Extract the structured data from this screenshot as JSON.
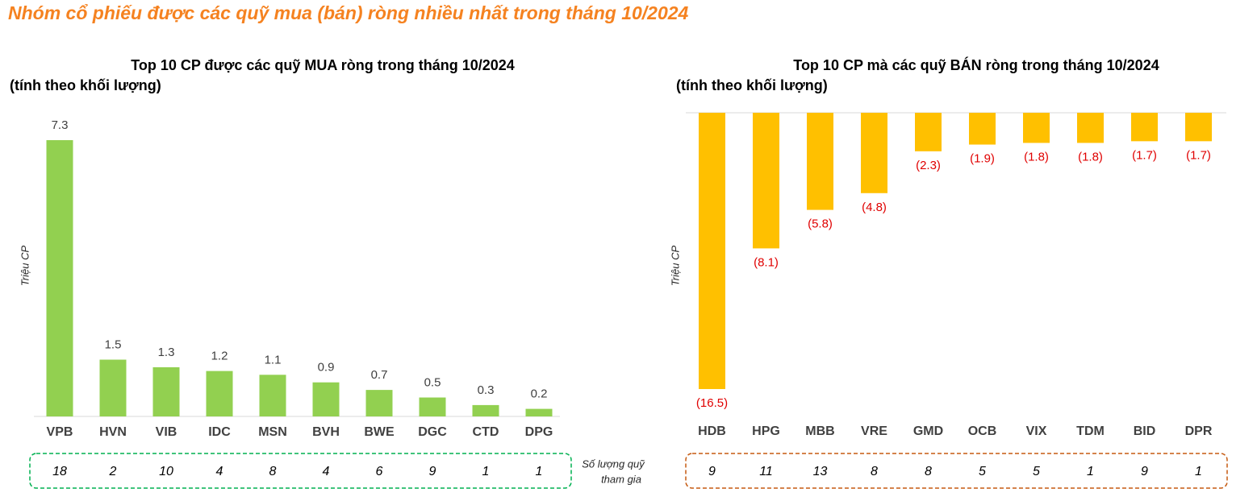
{
  "title": "Nhóm cổ phiếu được các quỹ mua (bán) ròng nhiều nhất trong tháng 10/2024",
  "counts_label": [
    "Số lượng quỹ",
    "tham gia"
  ],
  "chart_data": [
    {
      "type": "bar",
      "title": "Top 10 CP được các quỹ MUA ròng trong tháng 10/2024",
      "subtitle": "(tính theo khối lượng)",
      "y_label": "Triệu CP",
      "color": "#92d050",
      "label_color": "#404040",
      "box_color": "#00b050",
      "categories": [
        "VPB",
        "HVN",
        "VIB",
        "IDC",
        "MSN",
        "BVH",
        "BWE",
        "DGC",
        "CTD",
        "DPG"
      ],
      "values": [
        7.3,
        1.5,
        1.3,
        1.2,
        1.1,
        0.9,
        0.7,
        0.5,
        0.3,
        0.2
      ],
      "counts": [
        18,
        2,
        10,
        4,
        8,
        4,
        6,
        9,
        1,
        1
      ]
    },
    {
      "type": "bar",
      "title": "Top 10 CP mà các quỹ BÁN ròng trong tháng 10/2024",
      "subtitle": "(tính theo khối lượng)",
      "y_label": "Triệu CP",
      "color": "#ffc000",
      "label_color": "#e00000",
      "box_color": "#c55a11",
      "categories": [
        "HDB",
        "HPG",
        "MBB",
        "VRE",
        "GMD",
        "OCB",
        "VIX",
        "TDM",
        "BID",
        "DPR"
      ],
      "values": [
        -16.5,
        -8.1,
        -5.8,
        -4.8,
        -2.3,
        -1.9,
        -1.8,
        -1.8,
        -1.7,
        -1.7
      ],
      "value_labels": [
        "(16.5)",
        "(8.1)",
        "(5.8)",
        "(4.8)",
        "(2.3)",
        "(1.9)",
        "(1.8)",
        "(1.8)",
        "(1.7)",
        "(1.7)"
      ],
      "counts": [
        9,
        11,
        13,
        8,
        8,
        5,
        5,
        1,
        9,
        1
      ]
    }
  ]
}
